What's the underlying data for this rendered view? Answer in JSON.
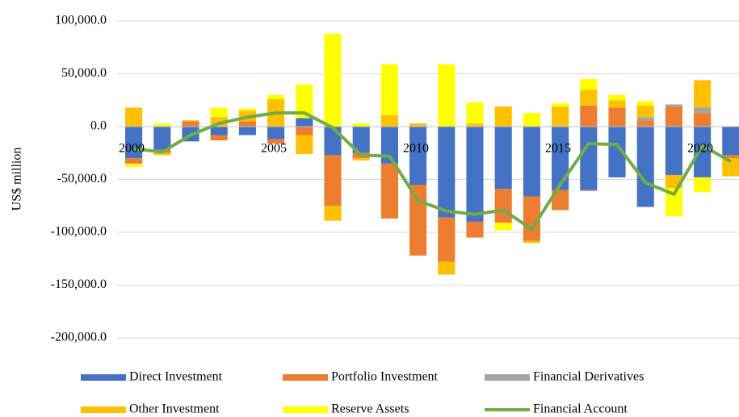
{
  "chart_data": {
    "type": "stacked-bar-line",
    "ylabel": "US$ million",
    "categories": [
      "2000",
      null,
      null,
      null,
      null,
      "2005",
      null,
      null,
      null,
      null,
      "2010",
      null,
      null,
      null,
      null,
      "2015",
      null,
      null,
      null,
      null,
      "2020",
      null
    ],
    "ylim": [
      -200000,
      100000
    ],
    "yticks": [
      {
        "value": -200000,
        "label": "-200,000.0"
      },
      {
        "value": -150000,
        "label": "-150,000.0"
      },
      {
        "value": -100000,
        "label": "-100,000.0"
      },
      {
        "value": -50000,
        "label": "-50,000.0"
      },
      {
        "value": 0,
        "label": "0.0"
      },
      {
        "value": 50000,
        "label": "50,000.0"
      },
      {
        "value": 100000,
        "label": "100,000.0"
      }
    ],
    "grid": true,
    "series": [
      {
        "name": "Direct Investment",
        "color": "#4472c4",
        "kind": "bar",
        "values": [
          -30000,
          -22000,
          -14000,
          -8000,
          -8000,
          -12000,
          8000,
          -27000,
          -25000,
          -35000,
          -55000,
          -86000,
          -90000,
          -59000,
          -66000,
          -60000,
          -60000,
          -48000,
          -76000,
          -46000,
          -48000,
          -27000
        ]
      },
      {
        "name": "Portfolio Investment",
        "color": "#ed7d31",
        "kind": "bar",
        "values": [
          -5000,
          -3000,
          5000,
          -5000,
          5000,
          -4000,
          -8000,
          -48000,
          -5000,
          -52000,
          -67000,
          -42000,
          -15000,
          -32000,
          -42000,
          -19000,
          20000,
          18000,
          6000,
          19000,
          13000,
          -3000
        ]
      },
      {
        "name": "Financial Derivatives",
        "color": "#a5a5a5",
        "kind": "bar",
        "values": [
          0,
          0,
          0,
          0,
          0,
          0,
          0,
          0,
          0,
          0,
          0,
          0,
          0,
          0,
          0,
          0,
          -1000,
          0,
          3000,
          2000,
          5000,
          0
        ]
      },
      {
        "name": "Other Investment",
        "color": "#ffc000",
        "kind": "bar",
        "values": [
          18000,
          -2000,
          1000,
          9000,
          10000,
          26000,
          -18000,
          -14000,
          -2000,
          11000,
          3000,
          -12000,
          3000,
          19000,
          -2000,
          19000,
          15000,
          7000,
          11000,
          -12000,
          26000,
          -17000
        ]
      },
      {
        "name": "Reserve Assets",
        "color": "#ffff00",
        "kind": "bar",
        "values": [
          -3000,
          3000,
          0,
          9000,
          2000,
          4000,
          32000,
          88000,
          3000,
          48000,
          0,
          59000,
          20000,
          -7000,
          13000,
          3000,
          10000,
          5000,
          4000,
          -27000,
          -14000,
          0
        ]
      },
      {
        "name": "Financial Account",
        "color": "#70ad47",
        "kind": "line",
        "values": [
          -21000,
          -24000,
          -8000,
          3000,
          9000,
          13000,
          13000,
          -1000,
          -27000,
          -28000,
          -70000,
          -80000,
          -83000,
          -79000,
          -97000,
          -55000,
          -16000,
          -17000,
          -53000,
          -64000,
          -18000,
          -33000
        ]
      }
    ]
  }
}
